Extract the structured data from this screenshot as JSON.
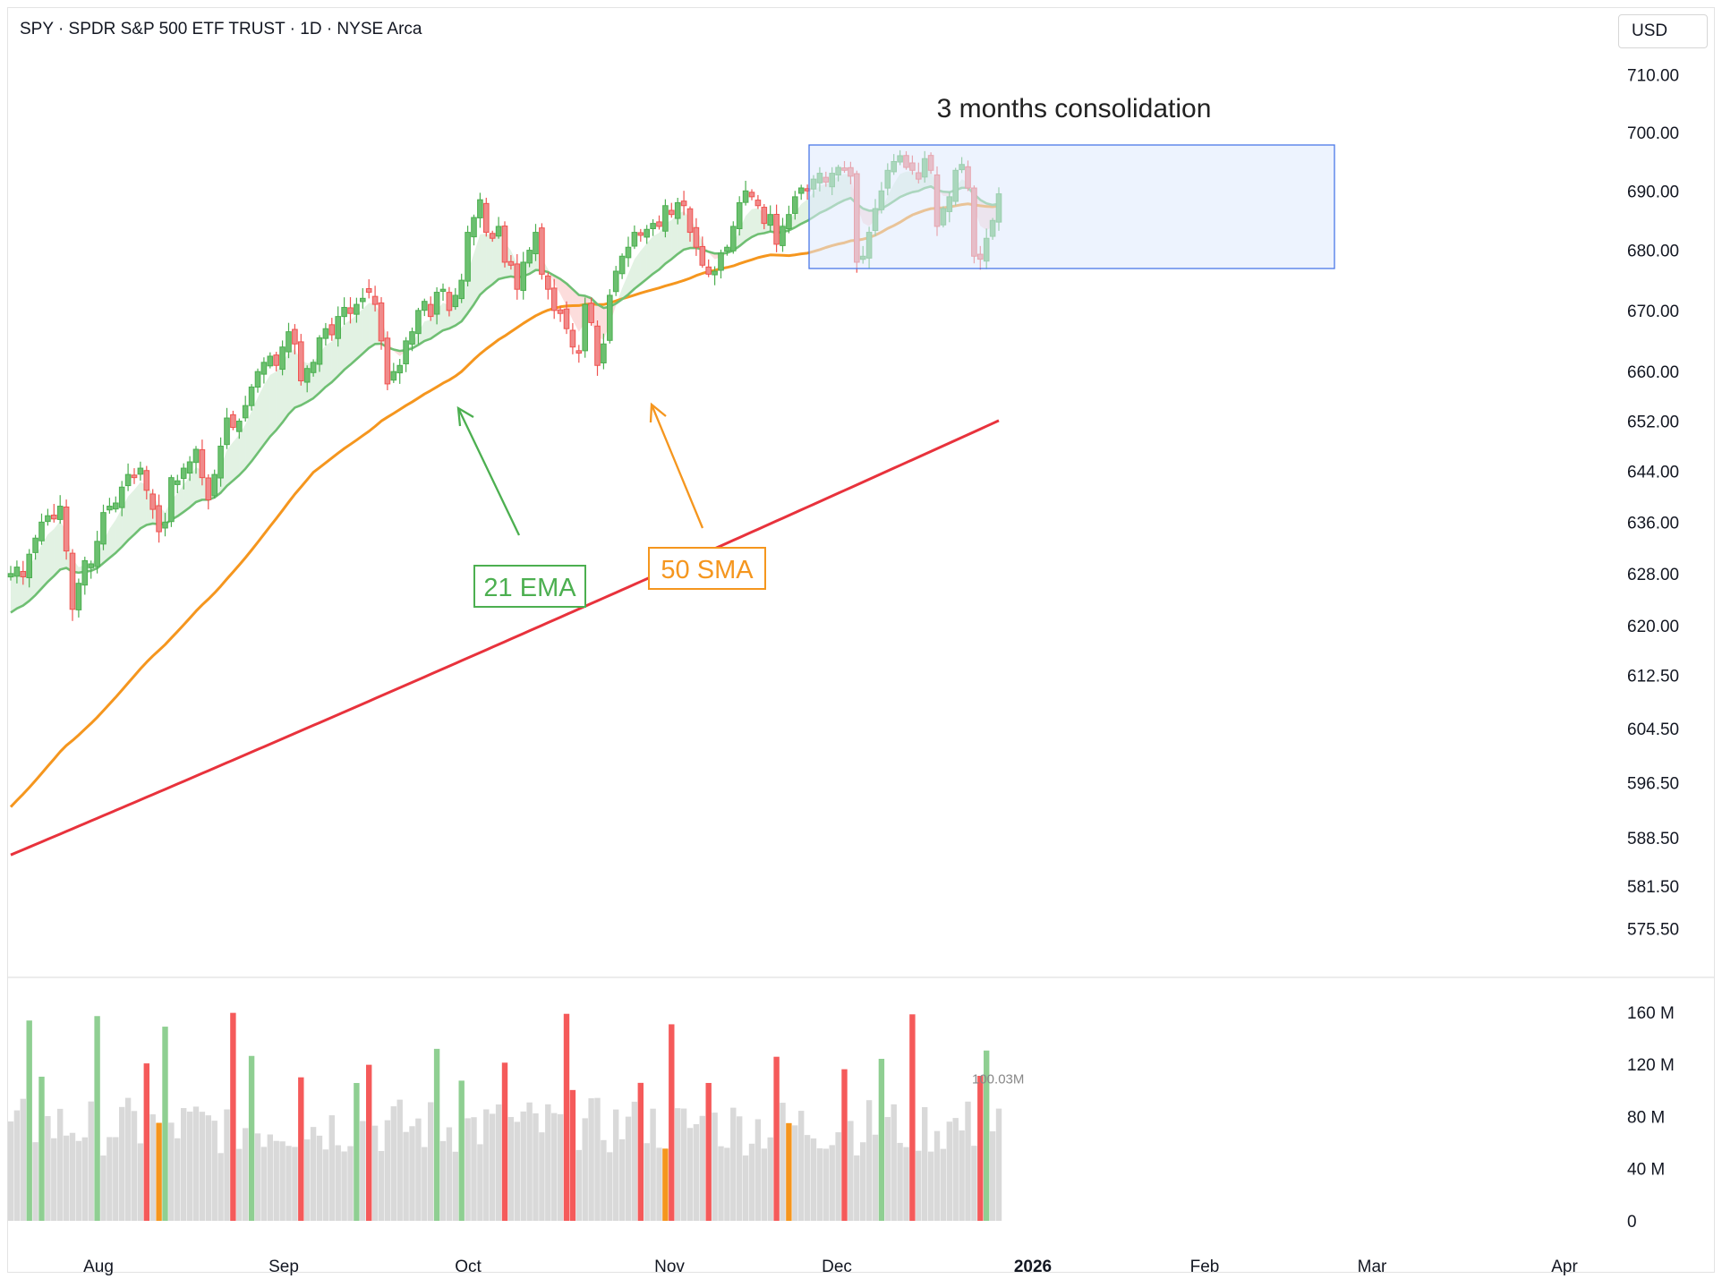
{
  "header": {
    "title": "SPY · SPDR S&P 500 ETF TRUST · 1D · NYSE Arca",
    "currency": "USD"
  },
  "colors": {
    "up": "#4caf50",
    "down": "#ef5350",
    "ema21": "#6fbf73",
    "sma50": "#f5961e",
    "sma200": "#e8323c",
    "box": "#4a78e8"
  },
  "annotations": {
    "consolidation": "3 months consolidation",
    "ema_label": "21 EMA",
    "sma_label": "50 SMA"
  },
  "chart_data": [
    {
      "type": "candlestick",
      "title": "SPY · SPDR S&P 500 ETF TRUST · 1D · NYSE Arca",
      "y_scale": "log",
      "ylim": [
        572,
        714
      ],
      "y_ticks": [
        710,
        700,
        690,
        680,
        670,
        660,
        652,
        644,
        636,
        628,
        620,
        612.5,
        604.5,
        596.5,
        588.5,
        581.5,
        575.5
      ],
      "y_tick_labels": [
        "710.00",
        "700.00",
        "690.00",
        "680.00",
        "670.00",
        "660.00",
        "652.00",
        "644.00",
        "636.00",
        "628.00",
        "620.00",
        "612.50",
        "604.50",
        "596.50",
        "588.50",
        "581.50",
        "575.50"
      ],
      "x_tick_labels": [
        "Aug",
        "Sep",
        "Oct",
        "Nov",
        "Dec",
        "2026",
        "Feb",
        "Mar",
        "Apr"
      ],
      "closes": [
        628.0,
        629.0,
        627.5,
        631.0,
        633.5,
        636.0,
        637.0,
        636.5,
        638.5,
        631.5,
        622.5,
        626.5,
        630.0,
        629.5,
        633.0,
        637.5,
        638.5,
        639.0,
        641.5,
        643.5,
        643.0,
        644.5,
        641.0,
        638.0,
        634.5,
        636.0,
        643.0,
        642.5,
        644.5,
        645.5,
        647.5,
        643.0,
        639.5,
        643.5,
        648.0,
        652.5,
        651.0,
        652.0,
        654.5,
        657.5,
        660.0,
        661.5,
        662.5,
        661.0,
        664.0,
        666.5,
        664.5,
        658.5,
        660.5,
        661.5,
        665.5,
        667.0,
        666.0,
        669.0,
        670.5,
        669.5,
        671.0,
        672.0,
        673.0,
        671.0,
        665.0,
        658.0,
        660.0,
        661.0,
        665.0,
        666.5,
        670.0,
        671.5,
        669.0,
        673.0,
        673.5,
        670.0,
        672.5,
        675.0,
        683.0,
        685.5,
        688.5,
        683.0,
        682.0,
        684.0,
        678.0,
        677.5,
        673.5,
        678.0,
        680.0,
        683.0,
        676.0,
        673.5,
        670.0,
        669.5,
        667.0,
        664.0,
        663.0,
        671.0,
        668.0,
        661.0,
        664.5,
        672.5,
        676.5,
        679.0,
        680.5,
        683.0,
        682.5,
        683.5,
        684.5,
        684.0,
        687.5,
        686.0,
        688.0,
        687.5,
        683.0,
        680.5,
        677.5,
        676.0,
        676.5,
        679.5,
        680.5,
        684.0,
        688.0,
        690.0,
        689.0,
        687.5,
        684.5,
        686.0,
        681.0,
        684.0,
        686.0,
        689.0,
        690.5,
        690.0,
        692.0,
        693.0,
        691.5,
        693.0,
        694.0,
        693.5,
        692.5,
        678.0,
        679.0,
        683.0,
        687.0,
        690.0,
        693.5,
        695.0,
        696.0,
        694.0,
        693.5,
        692.0,
        695.5,
        693.5,
        684.0,
        687.0,
        689.0,
        693.5,
        694.5,
        690.5,
        679.0,
        678.5,
        682.0,
        685.0,
        689.5
      ],
      "volume_ylim": [
        0,
        170
      ],
      "volume_ticks": [
        0,
        40,
        80,
        120,
        160
      ],
      "volume_tick_labels": [
        "0",
        "40 M",
        "80 M",
        "120 M",
        "160 M"
      ],
      "last_volume_label": "100.03M"
    }
  ]
}
